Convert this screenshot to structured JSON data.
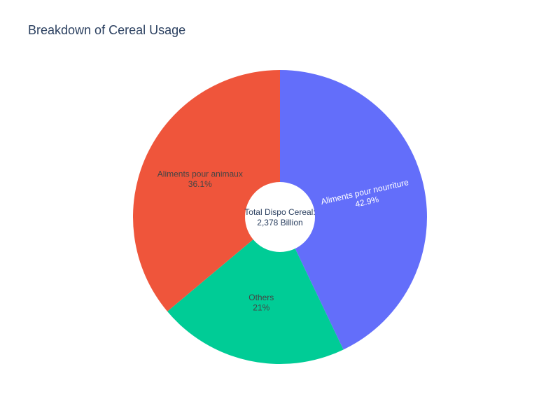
{
  "chart_data": {
    "type": "pie",
    "title": "Breakdown of Cereal Usage",
    "hole": true,
    "center_annotation": [
      "Total Dispo Cereal:",
      "2,378 Billion"
    ],
    "slices": [
      {
        "label": "Aliments pour nourriture",
        "percent": 42.9,
        "percent_text": "42.9%",
        "color": "#636efa",
        "text_color": "#ffffff",
        "label_orientation": "radial"
      },
      {
        "label": "Others",
        "percent": 21.0,
        "percent_text": "21%",
        "color": "#00cc96",
        "text_color": "#444444",
        "label_orientation": "horizontal"
      },
      {
        "label": "Aliments pour animaux",
        "percent": 36.1,
        "percent_text": "36.1%",
        "color": "#ef553b",
        "text_color": "#444444",
        "label_orientation": "horizontal"
      }
    ],
    "start_angle_deg": 90,
    "direction": "clockwise"
  }
}
